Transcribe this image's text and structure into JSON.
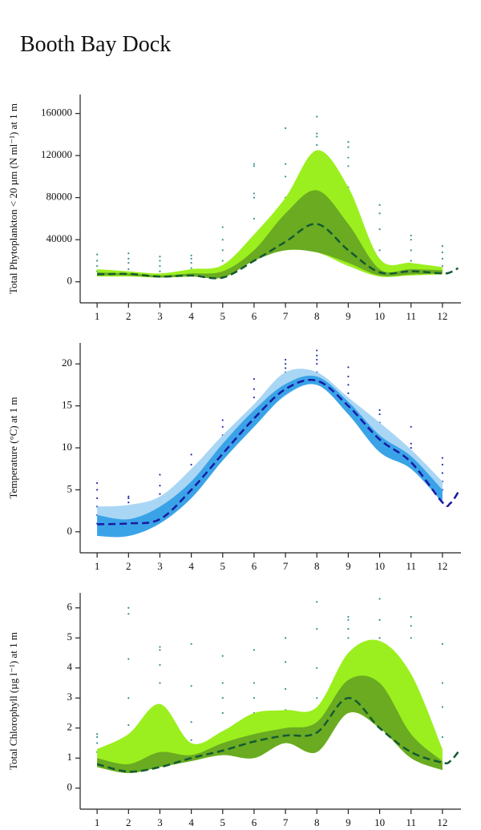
{
  "title": "Booth Bay Dock",
  "chart_data": [
    {
      "type": "area",
      "ylabel": "Total Phytoplankton < 20 µm (N ml⁻¹) at 1 m",
      "xlim": [
        0.46,
        12.59
      ],
      "xticks": [
        1,
        2,
        3,
        4,
        5,
        6,
        7,
        8,
        9,
        10,
        11,
        12
      ],
      "ylim": [
        -20000,
        178000
      ],
      "yticks": [
        0,
        40000,
        80000,
        120000,
        160000
      ],
      "series": [
        {
          "kind": "band",
          "color": "#9bef1e",
          "x": [
            1,
            2,
            3,
            4,
            5,
            6,
            7,
            8,
            9,
            10,
            11,
            12
          ],
          "lower": [
            5000,
            5000,
            4000,
            5000,
            6000,
            22000,
            30000,
            28000,
            15000,
            5000,
            6000,
            7000
          ],
          "upper": [
            12000,
            10000,
            8000,
            12000,
            16000,
            45000,
            80000,
            125000,
            90000,
            22000,
            18000,
            14000
          ]
        },
        {
          "kind": "band",
          "color": "#6aab22",
          "x": [
            1,
            2,
            3,
            4,
            5,
            6,
            7,
            8,
            9,
            10,
            11,
            12
          ],
          "lower": [
            6000,
            6000,
            4000,
            5000,
            4000,
            20000,
            30000,
            28000,
            18000,
            6000,
            7000,
            8000
          ],
          "upper": [
            9000,
            8000,
            6000,
            8000,
            10000,
            30000,
            65000,
            87000,
            55000,
            12000,
            12000,
            11000
          ]
        },
        {
          "kind": "line",
          "color": "#145a32",
          "x": [
            1,
            2,
            3,
            4,
            5,
            6,
            7,
            8,
            9,
            10,
            11,
            12,
            12.25,
            12.5
          ],
          "values": [
            7000,
            7500,
            5000,
            6000,
            4000,
            20000,
            38000,
            55000,
            30000,
            9000,
            10000,
            8000,
            9000,
            13000
          ]
        },
        {
          "kind": "scatter",
          "color": "#3a8f8f",
          "x": [
            1,
            1,
            1,
            1,
            2,
            2,
            2,
            2,
            3,
            3,
            3,
            3,
            4,
            4,
            4,
            4,
            5,
            5,
            5,
            5,
            6,
            6,
            6,
            6,
            6,
            7,
            7,
            7,
            7,
            8,
            8,
            8,
            8,
            8,
            9,
            9,
            9,
            9,
            9,
            10,
            10,
            10,
            10,
            11,
            11,
            11,
            11,
            12,
            12,
            12,
            12
          ],
          "values": [
            10000,
            15000,
            20000,
            26000,
            12000,
            18000,
            22000,
            27000,
            10000,
            15000,
            20000,
            24000,
            13000,
            18000,
            22000,
            25000,
            20000,
            30000,
            40000,
            52000,
            60000,
            80000,
            84000,
            110000,
            112000,
            80000,
            100000,
            112000,
            146000,
            110000,
            130000,
            138000,
            141000,
            157000,
            90000,
            110000,
            118000,
            128000,
            133000,
            30000,
            50000,
            65000,
            73000,
            20000,
            30000,
            40000,
            44000,
            15000,
            22000,
            28000,
            34000
          ]
        }
      ]
    },
    {
      "type": "area",
      "ylabel": "Temperature (°C) at 1 m",
      "xlim": [
        0.46,
        12.59
      ],
      "xticks": [
        1,
        2,
        3,
        4,
        5,
        6,
        7,
        8,
        9,
        10,
        11,
        12
      ],
      "ylim": [
        -2.5,
        22.5
      ],
      "yticks": [
        0,
        5,
        10,
        15,
        20
      ],
      "series": [
        {
          "kind": "band",
          "color": "#a9d6f5",
          "x": [
            1,
            2,
            3,
            4,
            5,
            6,
            7,
            8,
            9,
            10,
            11,
            12
          ],
          "lower": [
            -0.5,
            -0.5,
            1.5,
            4.5,
            8.5,
            12.5,
            16.2,
            17.5,
            14,
            9.5,
            7.5,
            3.5
          ],
          "upper": [
            3,
            3.2,
            4.2,
            7.5,
            11.5,
            15.2,
            19,
            19,
            16,
            13,
            9.8,
            6
          ]
        },
        {
          "kind": "band",
          "color": "#3aa3e8",
          "x": [
            1,
            2,
            3,
            4,
            5,
            6,
            7,
            8,
            9,
            10,
            11,
            12
          ],
          "lower": [
            -0.5,
            -0.5,
            1,
            4,
            8.5,
            12.5,
            16.3,
            17.5,
            14,
            9.5,
            7.5,
            3.5
          ],
          "upper": [
            2,
            1.5,
            3,
            6,
            10.5,
            14.5,
            17.6,
            18.5,
            15.5,
            11.5,
            9,
            5
          ]
        },
        {
          "kind": "line",
          "color": "#1a1aa0",
          "x": [
            1,
            2,
            3,
            4,
            5,
            6,
            7,
            8,
            9,
            10,
            11,
            12,
            12.25,
            12.5
          ],
          "values": [
            0.9,
            1.0,
            1.5,
            5,
            9.3,
            13.5,
            17,
            18,
            15,
            11,
            8.3,
            3.5,
            3.4,
            4.7
          ]
        },
        {
          "kind": "scatter",
          "color": "#2030b0",
          "x": [
            1,
            1,
            1,
            1,
            1,
            1,
            2,
            2,
            2,
            2,
            2,
            3,
            3,
            3,
            3,
            3,
            4,
            4,
            4,
            4,
            4,
            5,
            5,
            5,
            5,
            5,
            6,
            6,
            6,
            6,
            6,
            7,
            7,
            7,
            7,
            7,
            8,
            8,
            8,
            8,
            8,
            9,
            9,
            9,
            9,
            9,
            10,
            10,
            10,
            10,
            10,
            11,
            11,
            11,
            11,
            11,
            12,
            12,
            12,
            12,
            12
          ],
          "values": [
            1,
            2,
            3,
            4,
            5,
            5.8,
            2.5,
            3,
            3.5,
            4,
            4.2,
            2,
            3.5,
            4.5,
            5.5,
            6.8,
            5,
            6,
            7,
            8,
            9.2,
            9,
            10.5,
            11.5,
            12.5,
            13.3,
            14,
            15,
            16,
            17,
            18.2,
            18,
            19,
            19.5,
            20,
            20.5,
            19,
            20,
            20.5,
            21,
            21.6,
            15.5,
            16.5,
            17.5,
            18.5,
            19.6,
            11,
            12,
            13,
            14,
            14.5,
            8.5,
            9.5,
            10,
            10.5,
            12.5,
            5,
            6,
            7,
            8,
            8.8
          ]
        }
      ]
    },
    {
      "type": "area",
      "ylabel": "Total Chlorophyll (µg l⁻¹) at 1 m",
      "xlim": [
        0.46,
        12.59
      ],
      "xticks": [
        1,
        2,
        3,
        4,
        5,
        6,
        7,
        8,
        9,
        10,
        11,
        12
      ],
      "ylim": [
        -0.7,
        6.5
      ],
      "yticks": [
        0,
        1,
        2,
        3,
        4,
        5,
        6
      ],
      "series": [
        {
          "kind": "band",
          "color": "#9bef1e",
          "x": [
            1,
            2,
            3,
            4,
            5,
            6,
            7,
            8,
            9,
            10,
            11,
            12
          ],
          "lower": [
            0.7,
            0.5,
            0.7,
            0.9,
            1.1,
            1.0,
            1.5,
            1.2,
            2.5,
            2.0,
            1.0,
            0.6
          ],
          "upper": [
            1.3,
            1.8,
            2.8,
            1.5,
            1.9,
            2.5,
            2.6,
            2.7,
            4.5,
            4.9,
            3.8,
            1.3
          ]
        },
        {
          "kind": "band",
          "color": "#6aab22",
          "x": [
            1,
            2,
            3,
            4,
            5,
            6,
            7,
            8,
            9,
            10,
            11,
            12
          ],
          "lower": [
            0.7,
            0.5,
            0.7,
            0.9,
            1.1,
            1.0,
            1.5,
            1.2,
            2.5,
            2.0,
            1.0,
            0.6
          ],
          "upper": [
            1.0,
            0.8,
            1.2,
            1.1,
            1.5,
            1.8,
            2.0,
            2.2,
            3.6,
            3.5,
            1.8,
            0.9
          ]
        },
        {
          "kind": "line",
          "color": "#145a32",
          "x": [
            1,
            2,
            3,
            4,
            5,
            6,
            7,
            8,
            9,
            10,
            11,
            12,
            12.25,
            12.5
          ],
          "values": [
            0.8,
            0.55,
            0.7,
            1.0,
            1.25,
            1.55,
            1.75,
            1.85,
            3.0,
            2.0,
            1.2,
            0.85,
            0.9,
            1.2
          ]
        },
        {
          "kind": "scatter",
          "color": "#3a8f8f",
          "x": [
            1,
            1,
            1,
            1,
            2,
            2,
            2,
            2,
            2,
            3,
            3,
            3,
            3,
            3,
            4,
            4,
            4,
            4,
            5,
            5,
            5,
            5,
            6,
            6,
            6,
            6,
            7,
            7,
            7,
            7,
            8,
            8,
            8,
            8,
            9,
            9,
            9,
            9,
            9,
            10,
            10,
            10,
            10,
            11,
            11,
            11,
            11,
            12,
            12,
            12,
            12
          ],
          "values": [
            1.2,
            1.5,
            1.7,
            1.8,
            2.1,
            3,
            4.3,
            5.8,
            6,
            2.5,
            3.5,
            4.1,
            4.6,
            4.7,
            1.6,
            2.2,
            3.4,
            4.8,
            2.5,
            3,
            3.5,
            4.4,
            2.5,
            3,
            3.5,
            4.6,
            2.6,
            3.3,
            4.2,
            5,
            3,
            4,
            5.3,
            6.2,
            4.3,
            5,
            5.3,
            5.6,
            5.7,
            4,
            5,
            5.6,
            6.3,
            3.5,
            5,
            5.4,
            5.7,
            1.7,
            2.7,
            3.5,
            4.8
          ]
        }
      ]
    }
  ]
}
